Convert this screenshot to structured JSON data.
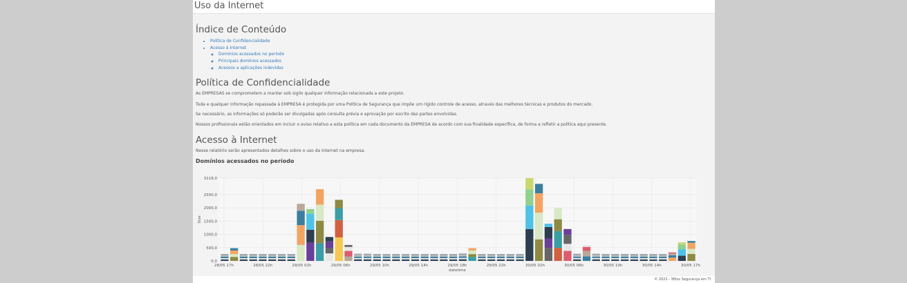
{
  "header": {
    "title": "Uso da Internet"
  },
  "toc": {
    "title": "Índice de Conteúdo",
    "items": [
      {
        "label": "Política de Confidencialidade"
      },
      {
        "label": "Acesso à Internet"
      }
    ],
    "subitems": [
      {
        "label": "Domínios acessados no período"
      },
      {
        "label": "Principais domínios acessados"
      },
      {
        "label": "Acessos a aplicações indevidas"
      }
    ]
  },
  "policy": {
    "title": "Política de Confidencialidade",
    "paragraphs": [
      "As EMPRESAS se comprometem a manter sob sigilo qualquer informação relacionada a este projeto.",
      "Toda e qualquer informação repassada à EMPRESA é protegida por uma Política de Segurança que impõe um rígido controle de acesso, através das melhores técnicas e produtos do mercado.",
      "Se necessário, as informações só poderão ser divulgadas após consulta prévia e aprovação por escrito das partes envolvidas.",
      "Nossos profissionais estão orientados em incluir o aviso relativo a esta política em cada documento da EMPRESA de acordo com sua finalidade específica, de forma a refletir a política aqui presente."
    ]
  },
  "internet": {
    "title": "Acesso à Internet",
    "intro": "Nesse relatório serão apresentados detalhes sobre o uso da Internet na empresa.",
    "subtitle": "Domínios acessados no período"
  },
  "chart_data": {
    "type": "bar",
    "stacked": true,
    "xlabel": "datetime",
    "ylabel": "Size",
    "ylim": [
      0,
      3118
    ],
    "yticks": [
      "3118,0",
      "2500,0",
      "2000,0",
      "1500,0",
      "1000,0",
      "500,0",
      "0,0"
    ],
    "xticks": [
      "28/05 17h",
      "28/05 22h",
      "29/05 02h",
      "29/05 06h",
      "29/05 10h",
      "29/05 14h",
      "29/05 18h",
      "29/05 22h",
      "30/05 02h",
      "30/05 06h",
      "30/05 10h",
      "30/05 14h",
      "30/05 17h"
    ],
    "totals": [
      260,
      480,
      260,
      260,
      260,
      260,
      260,
      260,
      2150,
      1950,
      2700,
      900,
      2300,
      600,
      270,
      270,
      260,
      260,
      260,
      260,
      260,
      260,
      260,
      260,
      260,
      280,
      480,
      260,
      260,
      260,
      260,
      260,
      3118,
      2900,
      1400,
      2000,
      1200,
      270,
      600,
      270,
      260,
      260,
      260,
      260,
      260,
      260,
      260,
      320,
      700,
      750
    ],
    "colors": [
      "#2c3e50",
      "#e8e8e8",
      "#3b7fa0",
      "#8e8a42",
      "#f9c74f",
      "#4cc3e8",
      "#666666",
      "#b9a89a",
      "#d9e8c5",
      "#d35f3f",
      "#8fd18e",
      "#6a3f9c",
      "#e05a6d",
      "#f4a460",
      "#3a9ea5",
      "#c8d86b"
    ]
  },
  "footer": {
    "text": "© 2022 - 3Elos Segurança em TI"
  }
}
